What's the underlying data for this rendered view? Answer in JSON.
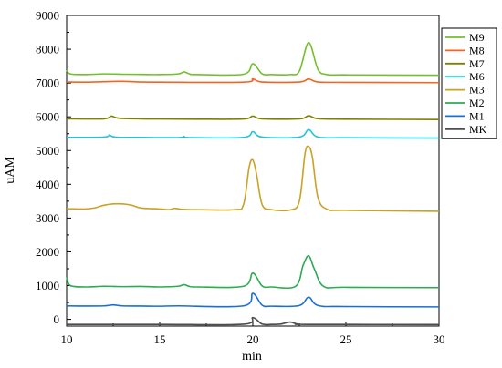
{
  "chart_data": {
    "type": "line",
    "xlabel": "min",
    "ylabel": "uAM",
    "xlim": [
      10,
      30
    ],
    "ylim": [
      -200,
      9000
    ],
    "x_ticks": [
      10,
      15,
      20,
      25,
      30
    ],
    "y_ticks": [
      0,
      1000,
      2000,
      3000,
      4000,
      5000,
      6000,
      7000,
      8000,
      9000
    ],
    "grid": false,
    "legend_position": "top-right",
    "legend": [
      "M9",
      "M8",
      "M7",
      "M6",
      "M3",
      "M2",
      "M1",
      "MK"
    ],
    "series": [
      {
        "name": "M9",
        "color": "#72c02c",
        "baseline": 7250,
        "points": [
          [
            10,
            7380
          ],
          [
            10.2,
            7270
          ],
          [
            11,
            7250
          ],
          [
            12,
            7270
          ],
          [
            13,
            7260
          ],
          [
            14,
            7255
          ],
          [
            15,
            7250
          ],
          [
            16,
            7270
          ],
          [
            16.3,
            7330
          ],
          [
            16.6,
            7270
          ],
          [
            17,
            7250
          ],
          [
            19.5,
            7260
          ],
          [
            20,
            7570
          ],
          [
            20.5,
            7270
          ],
          [
            21,
            7250
          ],
          [
            22,
            7250
          ],
          [
            22.5,
            7350
          ],
          [
            23,
            8200
          ],
          [
            23.5,
            7400
          ],
          [
            24,
            7250
          ],
          [
            25,
            7240
          ],
          [
            30,
            7230
          ]
        ]
      },
      {
        "name": "M8",
        "color": "#f26522",
        "baseline": 7020,
        "points": [
          [
            10,
            7030
          ],
          [
            11,
            7025
          ],
          [
            12,
            7040
          ],
          [
            13,
            7050
          ],
          [
            14,
            7030
          ],
          [
            15,
            7025
          ],
          [
            19.5,
            7025
          ],
          [
            20,
            7120
          ],
          [
            20.5,
            7030
          ],
          [
            22.5,
            7030
          ],
          [
            23,
            7120
          ],
          [
            23.5,
            7030
          ],
          [
            25,
            7020
          ],
          [
            30,
            7010
          ]
        ]
      },
      {
        "name": "M7",
        "color": "#808000",
        "baseline": 5930,
        "points": [
          [
            10,
            5940
          ],
          [
            12,
            5940
          ],
          [
            12.4,
            6020
          ],
          [
            12.8,
            5960
          ],
          [
            14,
            5940
          ],
          [
            15,
            5935
          ],
          [
            17,
            5930
          ],
          [
            19.5,
            5935
          ],
          [
            20,
            6020
          ],
          [
            20.5,
            5940
          ],
          [
            22.5,
            5940
          ],
          [
            23,
            6030
          ],
          [
            23.5,
            5945
          ],
          [
            25,
            5930
          ],
          [
            30,
            5920
          ]
        ]
      },
      {
        "name": "M6",
        "color": "#1fc6d6",
        "baseline": 5380,
        "points": [
          [
            10,
            5390
          ],
          [
            12,
            5400
          ],
          [
            12.3,
            5460
          ],
          [
            12.6,
            5400
          ],
          [
            14,
            5390
          ],
          [
            16,
            5385
          ],
          [
            16.3,
            5420
          ],
          [
            16.6,
            5385
          ],
          [
            19.5,
            5390
          ],
          [
            20,
            5560
          ],
          [
            20.5,
            5400
          ],
          [
            22.5,
            5400
          ],
          [
            23,
            5620
          ],
          [
            23.5,
            5400
          ],
          [
            25,
            5380
          ],
          [
            30,
            5370
          ]
        ]
      },
      {
        "name": "M3",
        "color": "#c9a227",
        "baseline": 3250,
        "points": [
          [
            10,
            3280
          ],
          [
            11,
            3270
          ],
          [
            11.5,
            3300
          ],
          [
            12,
            3380
          ],
          [
            12.5,
            3420
          ],
          [
            13,
            3420
          ],
          [
            13.5,
            3380
          ],
          [
            14,
            3300
          ],
          [
            15,
            3270
          ],
          [
            15.5,
            3250
          ],
          [
            15.8,
            3290
          ],
          [
            16.2,
            3260
          ],
          [
            17,
            3250
          ],
          [
            19,
            3250
          ],
          [
            19.5,
            3400
          ],
          [
            19.8,
            4500
          ],
          [
            20,
            4720
          ],
          [
            20.2,
            4300
          ],
          [
            20.5,
            3400
          ],
          [
            21,
            3250
          ],
          [
            22,
            3240
          ],
          [
            22.5,
            3500
          ],
          [
            22.8,
            4900
          ],
          [
            23,
            5120
          ],
          [
            23.2,
            4800
          ],
          [
            23.5,
            3600
          ],
          [
            24,
            3260
          ],
          [
            25,
            3230
          ],
          [
            30,
            3200
          ]
        ]
      },
      {
        "name": "M2",
        "color": "#2bab52",
        "baseline": 960,
        "points": [
          [
            10,
            1250
          ],
          [
            10.2,
            1000
          ],
          [
            11,
            960
          ],
          [
            12,
            980
          ],
          [
            13,
            970
          ],
          [
            14,
            975
          ],
          [
            15,
            960
          ],
          [
            16,
            980
          ],
          [
            16.3,
            1030
          ],
          [
            16.6,
            975
          ],
          [
            17,
            960
          ],
          [
            19.5,
            980
          ],
          [
            20,
            1370
          ],
          [
            20.5,
            990
          ],
          [
            21,
            960
          ],
          [
            22.3,
            980
          ],
          [
            22.7,
            1600
          ],
          [
            23,
            1880
          ],
          [
            23.3,
            1500
          ],
          [
            23.8,
            980
          ],
          [
            25,
            950
          ],
          [
            30,
            940
          ]
        ]
      },
      {
        "name": "M1",
        "color": "#1a6fd6",
        "baseline": 390,
        "points": [
          [
            10,
            400
          ],
          [
            11,
            395
          ],
          [
            12,
            400
          ],
          [
            12.5,
            430
          ],
          [
            13,
            400
          ],
          [
            14,
            395
          ],
          [
            15,
            390
          ],
          [
            16,
            400
          ],
          [
            19.5,
            400
          ],
          [
            20,
            770
          ],
          [
            20.5,
            420
          ],
          [
            21,
            390
          ],
          [
            22.5,
            410
          ],
          [
            23,
            660
          ],
          [
            23.5,
            410
          ],
          [
            25,
            380
          ],
          [
            30,
            370
          ]
        ]
      },
      {
        "name": "MK",
        "color": "#4d4d4d",
        "baseline": -150,
        "points": [
          [
            10,
            -150
          ],
          [
            15,
            -150
          ],
          [
            19.5,
            -145
          ],
          [
            20,
            50
          ],
          [
            20.5,
            -140
          ],
          [
            21,
            -150
          ],
          [
            21.5,
            -140
          ],
          [
            22,
            -80
          ],
          [
            22.4,
            -140
          ],
          [
            23,
            -150
          ],
          [
            30,
            -155
          ]
        ]
      }
    ]
  }
}
